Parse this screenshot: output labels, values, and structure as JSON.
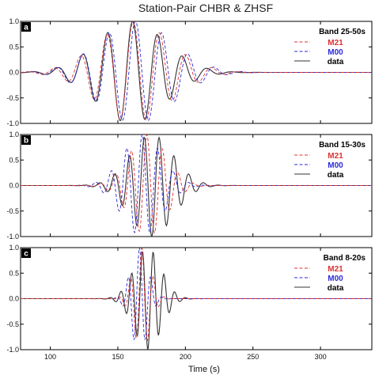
{
  "title": "Station-Pair CHBR & ZHSF",
  "xlabel": "Time (s)",
  "colors": {
    "M21": "#e03030",
    "M00": "#2a2adb",
    "data": "#333333"
  },
  "chart_data": [
    {
      "type": "line",
      "panel": "a",
      "legend_title": "Band 25-50s",
      "xlim": [
        78,
        338
      ],
      "ylim": [
        -1.0,
        1.0
      ],
      "x_ticks": [
        100,
        150,
        200,
        250,
        300
      ],
      "y_ticks": [
        "1.0",
        "0.5",
        "0.0",
        "-0.5",
        "-1.0"
      ],
      "series": [
        {
          "name": "M21",
          "style": "dashed",
          "envelope": {
            "center": 162,
            "width": 58,
            "period": 19.5,
            "phase_at_center": 0.2
          }
        },
        {
          "name": "M00",
          "style": "dashed",
          "envelope": {
            "center": 163,
            "width": 60,
            "period": 19.5,
            "phase_at_center": 0.0
          }
        },
        {
          "name": "data",
          "style": "solid",
          "envelope": {
            "center": 160,
            "width": 55,
            "period": 18.5,
            "phase_at_center": -0.3
          }
        }
      ]
    },
    {
      "type": "line",
      "panel": "b",
      "legend_title": "Band 15-30s",
      "xlim": [
        78,
        338
      ],
      "ylim": [
        -1.0,
        1.0
      ],
      "x_ticks": [
        100,
        150,
        200,
        250,
        300
      ],
      "y_ticks": [
        "1.0",
        "0.5",
        "0.0",
        "-0.5",
        "-1.0"
      ],
      "series": [
        {
          "name": "M21",
          "style": "dashed",
          "envelope": {
            "center": 172,
            "width": 30,
            "period": 11.5,
            "phase_at_center": 0.3
          }
        },
        {
          "name": "M00",
          "style": "dashed",
          "envelope": {
            "center": 168,
            "width": 32,
            "period": 11.5,
            "phase_at_center": 0.0
          }
        },
        {
          "name": "data",
          "style": "solid",
          "envelope": {
            "center": 175,
            "width": 35,
            "period": 11.0,
            "phase_at_center": 3.1
          }
        }
      ]
    },
    {
      "type": "line",
      "panel": "c",
      "legend_title": "Band 8-20s",
      "xlim": [
        78,
        338
      ],
      "ylim": [
        -1.0,
        1.0
      ],
      "x_ticks": [
        100,
        150,
        200,
        250,
        300
      ],
      "y_ticks": [
        "1.0",
        "0.5",
        "0.0",
        "-0.5",
        "-1.0"
      ],
      "series": [
        {
          "name": "M21",
          "style": "dashed",
          "envelope": {
            "center": 168,
            "width": 14,
            "period": 8.5,
            "phase_at_center": 0.2
          }
        },
        {
          "name": "M00",
          "style": "dashed",
          "envelope": {
            "center": 166,
            "width": 14,
            "period": 8.5,
            "phase_at_center": 0.0
          }
        },
        {
          "name": "data",
          "style": "solid",
          "envelope": {
            "center": 172,
            "width": 22,
            "period": 8.0,
            "phase_at_center": 3.0
          }
        }
      ]
    }
  ]
}
